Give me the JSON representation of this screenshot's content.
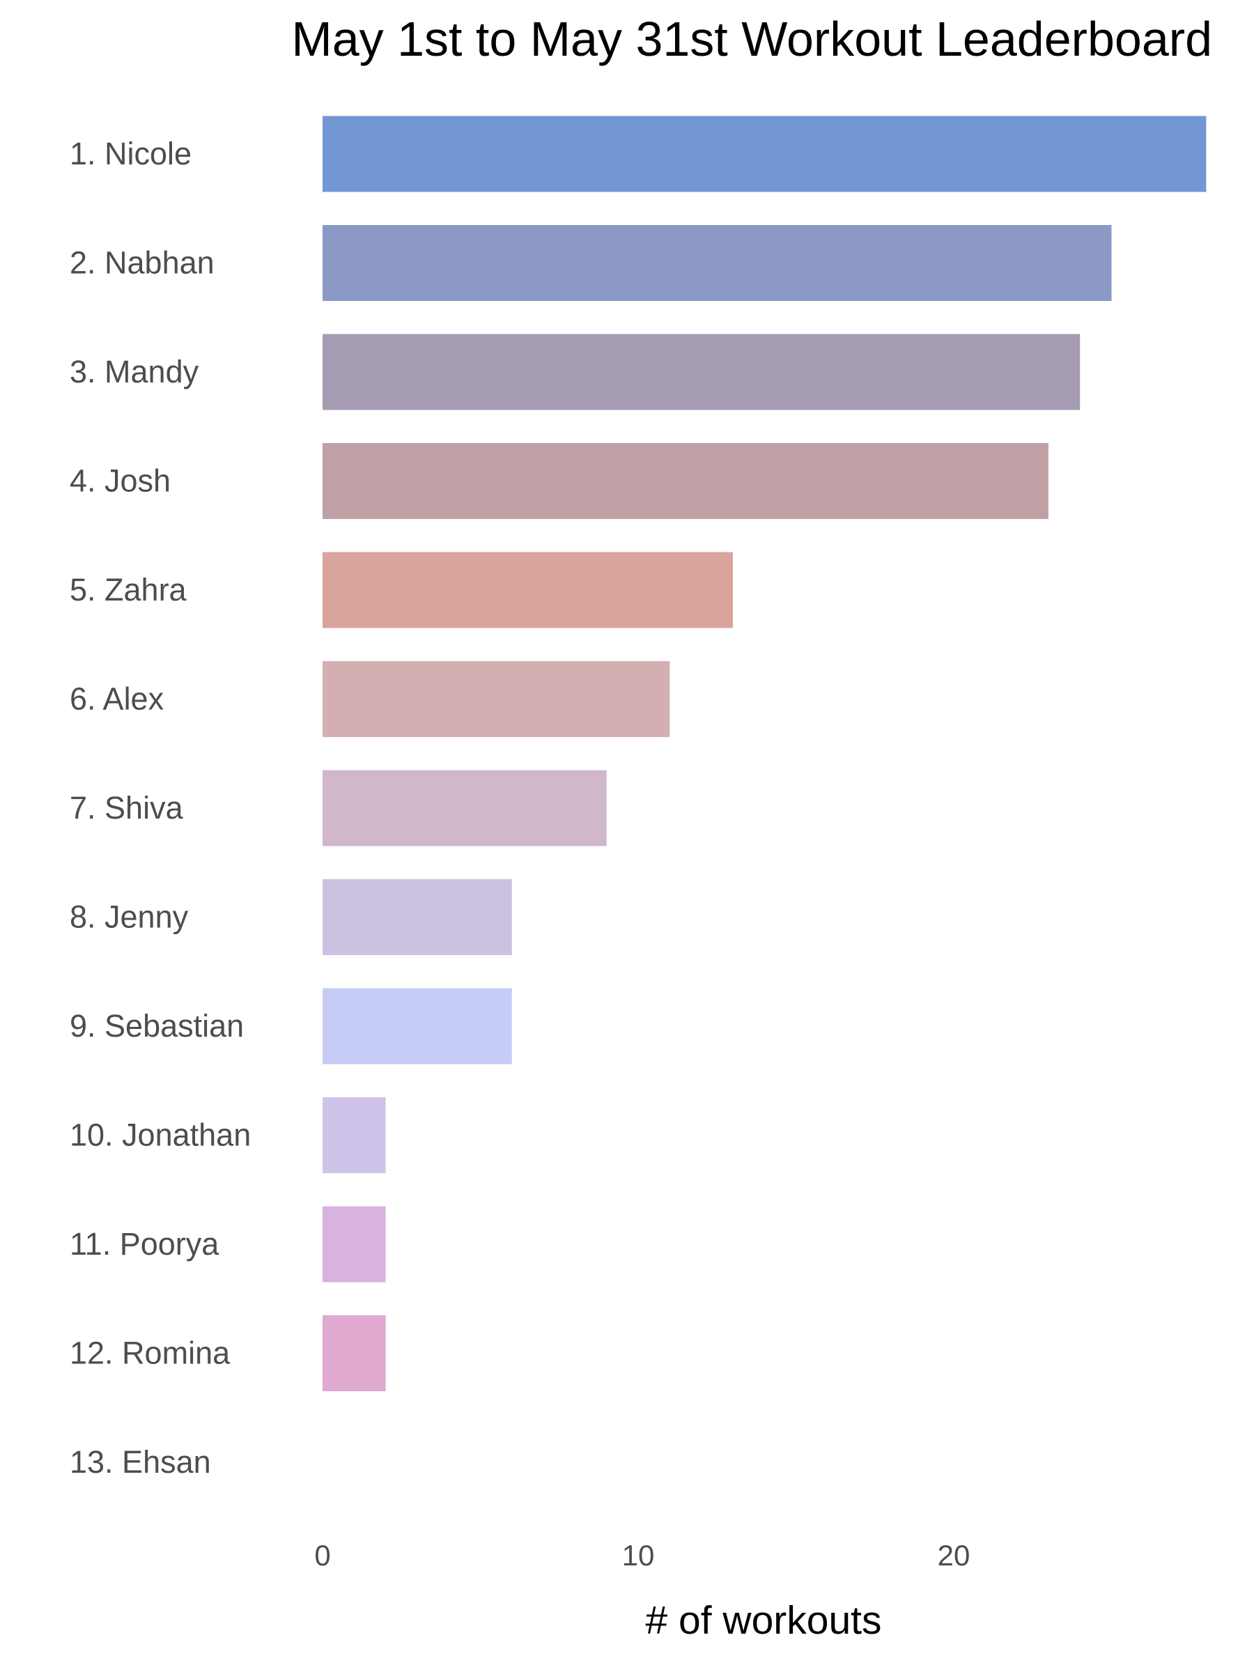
{
  "chart_data": {
    "type": "bar",
    "orientation": "horizontal",
    "title": "May 1st to May 31st Workout Leaderboard",
    "xlabel": "# of workouts",
    "ylabel": "",
    "xlim": [
      0,
      28
    ],
    "x_ticks": [
      0,
      10,
      20
    ],
    "grid": false,
    "legend": "none",
    "categories": [
      "1. Nicole",
      "2. Nabhan",
      "3. Mandy",
      "4. Josh",
      "5. Zahra",
      "6. Alex",
      "7. Shiva",
      "8. Jenny",
      "9. Sebastian",
      "10. Jonathan",
      "11. Poorya",
      "12. Romina",
      "13. Ehsan"
    ],
    "values": [
      28,
      25,
      24,
      23,
      13,
      11,
      9,
      6,
      6,
      2,
      2,
      2,
      0
    ],
    "colors": [
      "#7396d5",
      "#8c99c6",
      "#a59cb4",
      "#bea0a5",
      "#d8a49b",
      "#d4afb1",
      "#d0b8ca",
      "#cbc2e2",
      "#c7ccf6",
      "#cfc3ea",
      "#d8b3df",
      "#e0a9d0",
      "#e6a3c6"
    ]
  }
}
